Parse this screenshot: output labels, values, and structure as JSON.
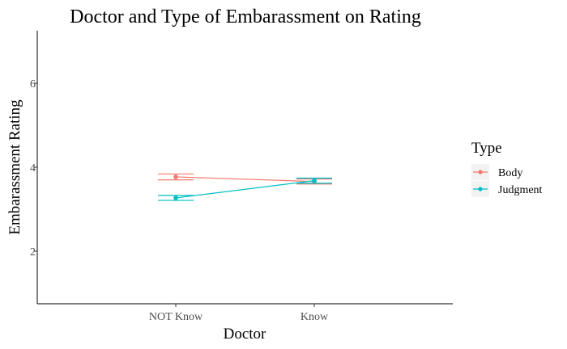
{
  "chart_data": {
    "type": "line",
    "title": "Doctor and Type of Embarassment on Rating",
    "xlabel": "Doctor",
    "ylabel": "Embarassment Rating",
    "categories": [
      "NOT Know",
      "Know"
    ],
    "ylim": [
      0.75,
      7.25
    ],
    "yticks": [
      2,
      4,
      6
    ],
    "grid": false,
    "legend": {
      "title": "Type",
      "position": "right"
    },
    "series": [
      {
        "name": "Body",
        "color": "#F8766D",
        "values": [
          3.77,
          3.66
        ],
        "error_low": [
          3.7,
          3.6
        ],
        "error_high": [
          3.84,
          3.72
        ]
      },
      {
        "name": "Judgment",
        "color": "#00BFC4",
        "values": [
          3.27,
          3.68
        ],
        "error_low": [
          3.21,
          3.62
        ],
        "error_high": [
          3.33,
          3.74
        ]
      }
    ]
  }
}
